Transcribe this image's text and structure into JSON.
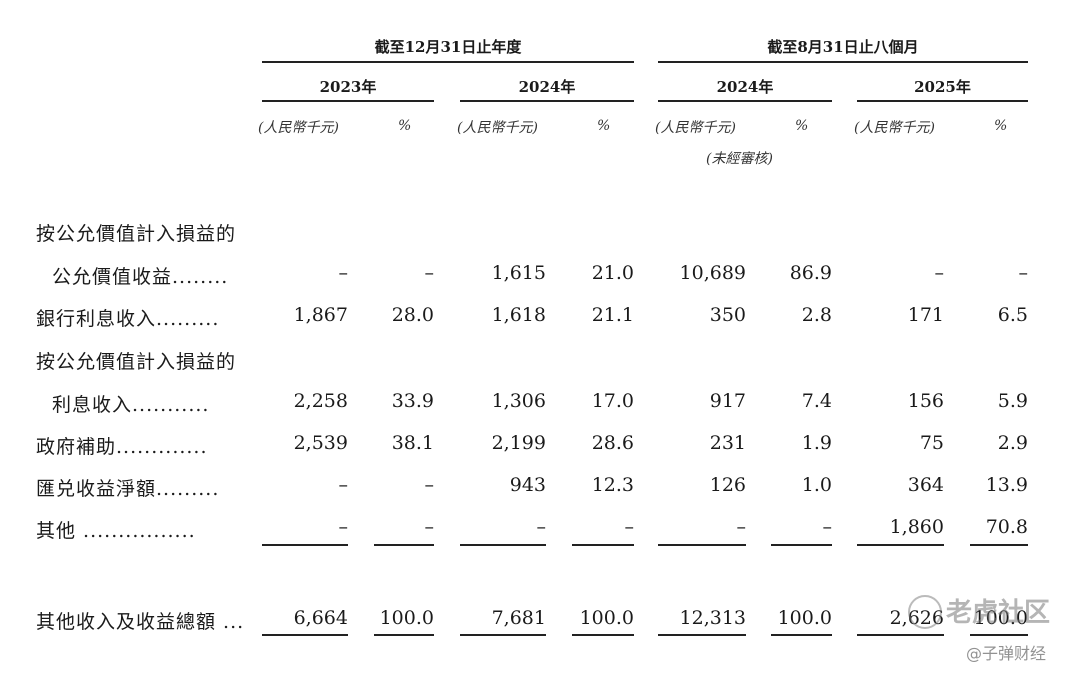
{
  "header": {
    "period_fy": "截至12月31日止年度",
    "period_8m": "截至8月31日止八個月",
    "years": [
      "2023年",
      "2024年",
      "2024年",
      "2025年"
    ],
    "unit_rmb": "(人民幣千元)",
    "unit_pct": "%",
    "unaudited": "(未經審核)"
  },
  "rows": [
    {
      "label1": "按公允價值計入損益的",
      "label2": "公允價值收益........",
      "values": [
        "–",
        "–",
        "1,615",
        "21.0",
        "10,689",
        "86.9",
        "–",
        "–"
      ]
    },
    {
      "label1": "銀行利息收入.........",
      "values": [
        "1,867",
        "28.0",
        "1,618",
        "21.1",
        "350",
        "2.8",
        "171",
        "6.5"
      ]
    },
    {
      "label1": "按公允價值計入損益的",
      "label2": "利息收入...........",
      "values": [
        "2,258",
        "33.9",
        "1,306",
        "17.0",
        "917",
        "7.4",
        "156",
        "5.9"
      ]
    },
    {
      "label1": "政府補助.............",
      "values": [
        "2,539",
        "38.1",
        "2,199",
        "28.6",
        "231",
        "1.9",
        "75",
        "2.9"
      ]
    },
    {
      "label1": "匯兑收益淨額.........",
      "values": [
        "–",
        "–",
        "943",
        "12.3",
        "126",
        "1.0",
        "364",
        "13.9"
      ]
    },
    {
      "label1": "其他 ................",
      "values": [
        "–",
        "–",
        "–",
        "–",
        "–",
        "–",
        "1,860",
        "70.8"
      ]
    }
  ],
  "total": {
    "label": "其他收入及收益總額 ...",
    "values": [
      "6,664",
      "100.0",
      "7,681",
      "100.0",
      "12,313",
      "100.0",
      "2,626",
      "100.0"
    ]
  },
  "watermark": {
    "brand": "老虎社区",
    "author": "@子弹财经"
  }
}
